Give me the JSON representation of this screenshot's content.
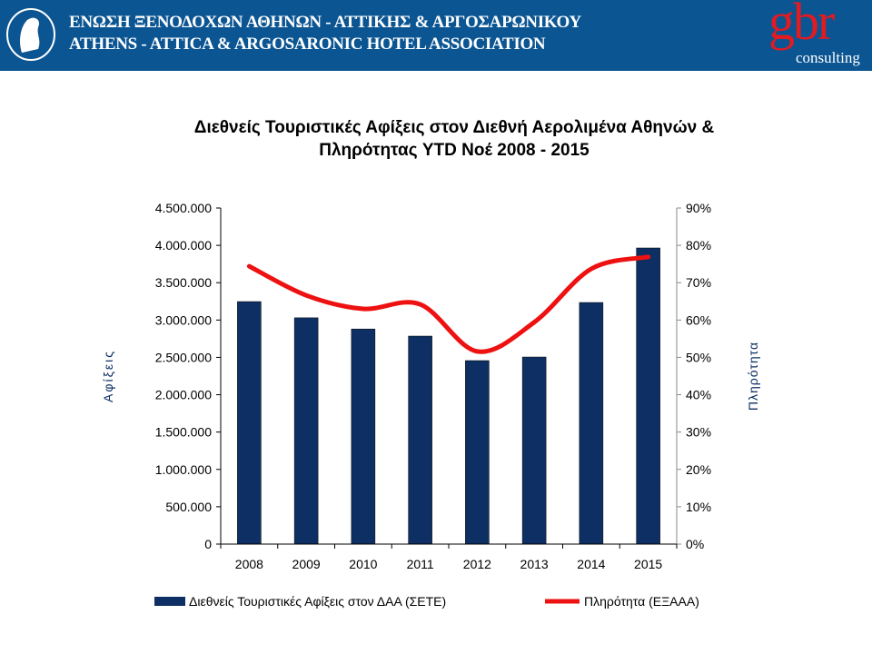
{
  "header": {
    "org_greek": "ΕΝΩΣΗ ΞΕΝΟΔΟΧΩΝ ΑΘΗΝΩΝ - ΑΤΤΙΚΗΣ & ΑΡΓΟΣΑΡΩΝΙΚΟΥ",
    "org_english": "ATHENS - ATTICA & ARGOSARONIC HOTEL ASSOCIATION",
    "brand": "gbr",
    "brand_sub": "consulting",
    "bg_color": "#0b5592"
  },
  "chart_data": {
    "type": "bar+line",
    "title_line1": "Διεθνείς Τουριστικές Αφίξεις στον Διεθνή Αερολιμένα Αθηνών &",
    "title_line2": "Πληρότητας YTD Νοέ 2008 - 2015",
    "categories": [
      "2008",
      "2009",
      "2010",
      "2011",
      "2012",
      "2013",
      "2014",
      "2015"
    ],
    "ylabel": "Αφίξεις",
    "y2label": "Πληρότητα",
    "ylim": [
      0,
      4500000
    ],
    "y2lim": [
      0,
      90
    ],
    "yticks": [
      "0",
      "500.000",
      "1.000.000",
      "1.500.000",
      "2.000.000",
      "2.500.000",
      "3.000.000",
      "3.500.000",
      "4.000.000",
      "4.500.000"
    ],
    "y2ticks": [
      "0%",
      "10%",
      "20%",
      "30%",
      "40%",
      "50%",
      "60%",
      "70%",
      "80%",
      "90%"
    ],
    "series": [
      {
        "name": "Διεθνείς Τουριστικές Αφίξεις στον ΔΑΑ (ΣΕΤΕ)",
        "type": "bar",
        "color": "#0d2f63",
        "values": [
          3247000,
          3030000,
          2880000,
          2785000,
          2457000,
          2505000,
          3235000,
          3965000
        ]
      },
      {
        "name": "Πληρότητα (ΕΞΑΑΑ)",
        "type": "line",
        "color": "#ee1111",
        "values": [
          74.4,
          66.6,
          63.0,
          64.2,
          51.6,
          59.4,
          73.7,
          76.9
        ]
      }
    ],
    "legend": "bottom"
  }
}
